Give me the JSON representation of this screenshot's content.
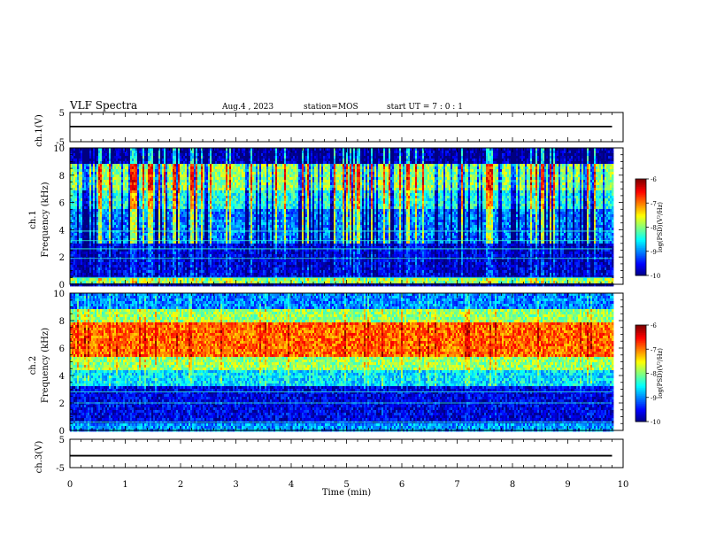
{
  "header": {
    "title": "VLF Spectra",
    "date": "Aug.4 , 2023",
    "station": "station=MOS",
    "start": "start UT = 7 : 0 : 1"
  },
  "chart_data": [
    {
      "type": "line",
      "name": "ch1-waveform",
      "ylabel": "ch.1(V)",
      "ylim": [
        -5,
        5
      ],
      "yticks": [
        "5",
        "-5"
      ],
      "xlim": [
        0,
        10
      ],
      "series": [
        {
          "x": [
            0,
            9.8
          ],
          "values": [
            0.2,
            0.2
          ]
        }
      ]
    },
    {
      "type": "heatmap",
      "name": "ch1-spectrogram",
      "ylabel": "ch.1\nFrequency (kHz)",
      "ylim": [
        0,
        10
      ],
      "yticks": [
        "0",
        "2",
        "4",
        "6",
        "8",
        "10"
      ],
      "xlim": [
        0,
        10
      ],
      "colorbar": {
        "label": "log(PSD)(V²/Hz)",
        "ticks": [
          "-6",
          "-7",
          "-8",
          "-9",
          "-10"
        ],
        "range": [
          -10,
          -6
        ]
      },
      "bands": [
        {
          "f": [
            0,
            0.5
          ],
          "level": -7.8
        },
        {
          "f": [
            0.5,
            3.0
          ],
          "level": -9.6
        },
        {
          "f": [
            3.0,
            5.5
          ],
          "level": -9.0
        },
        {
          "f": [
            5.5,
            6.8
          ],
          "level": -8.4
        },
        {
          "f": [
            6.8,
            8.8
          ],
          "level": -7.9
        },
        {
          "f": [
            8.8,
            10
          ],
          "level": -9.8
        }
      ],
      "data_end_min": 9.8
    },
    {
      "type": "heatmap",
      "name": "ch2-spectrogram",
      "ylabel": "ch.2\nFrequency (kHz)",
      "ylim": [
        0,
        10
      ],
      "yticks": [
        "0",
        "2",
        "4",
        "6",
        "8",
        "10"
      ],
      "xlim": [
        0,
        10
      ],
      "colorbar": {
        "label": "log(PSD)(V²/Hz)",
        "ticks": [
          "-6",
          "-7",
          "-8",
          "-9",
          "-10"
        ],
        "range": [
          -10,
          -6
        ]
      },
      "bands": [
        {
          "f": [
            0,
            0.6
          ],
          "level": -8.9
        },
        {
          "f": [
            0.6,
            3.2
          ],
          "level": -9.6
        },
        {
          "f": [
            3.2,
            4.4
          ],
          "level": -8.6
        },
        {
          "f": [
            4.4,
            5.3
          ],
          "level": -7.9
        },
        {
          "f": [
            5.3,
            7.9
          ],
          "level": -6.9
        },
        {
          "f": [
            7.9,
            8.8
          ],
          "level": -7.9
        },
        {
          "f": [
            8.8,
            10
          ],
          "level": -9.0
        }
      ],
      "data_end_min": 9.8
    },
    {
      "type": "line",
      "name": "ch3-waveform",
      "ylabel": "ch.3(V)",
      "ylim": [
        -5,
        5
      ],
      "yticks": [
        "5",
        "-5"
      ],
      "xlim": [
        0,
        10
      ],
      "xlabel": "Time (min)",
      "xticks": [
        "0",
        "1",
        "2",
        "3",
        "4",
        "5",
        "6",
        "7",
        "8",
        "9",
        "10"
      ],
      "series": [
        {
          "x": [
            0,
            9.8
          ],
          "values": [
            -0.8,
            -0.8
          ]
        }
      ]
    }
  ]
}
